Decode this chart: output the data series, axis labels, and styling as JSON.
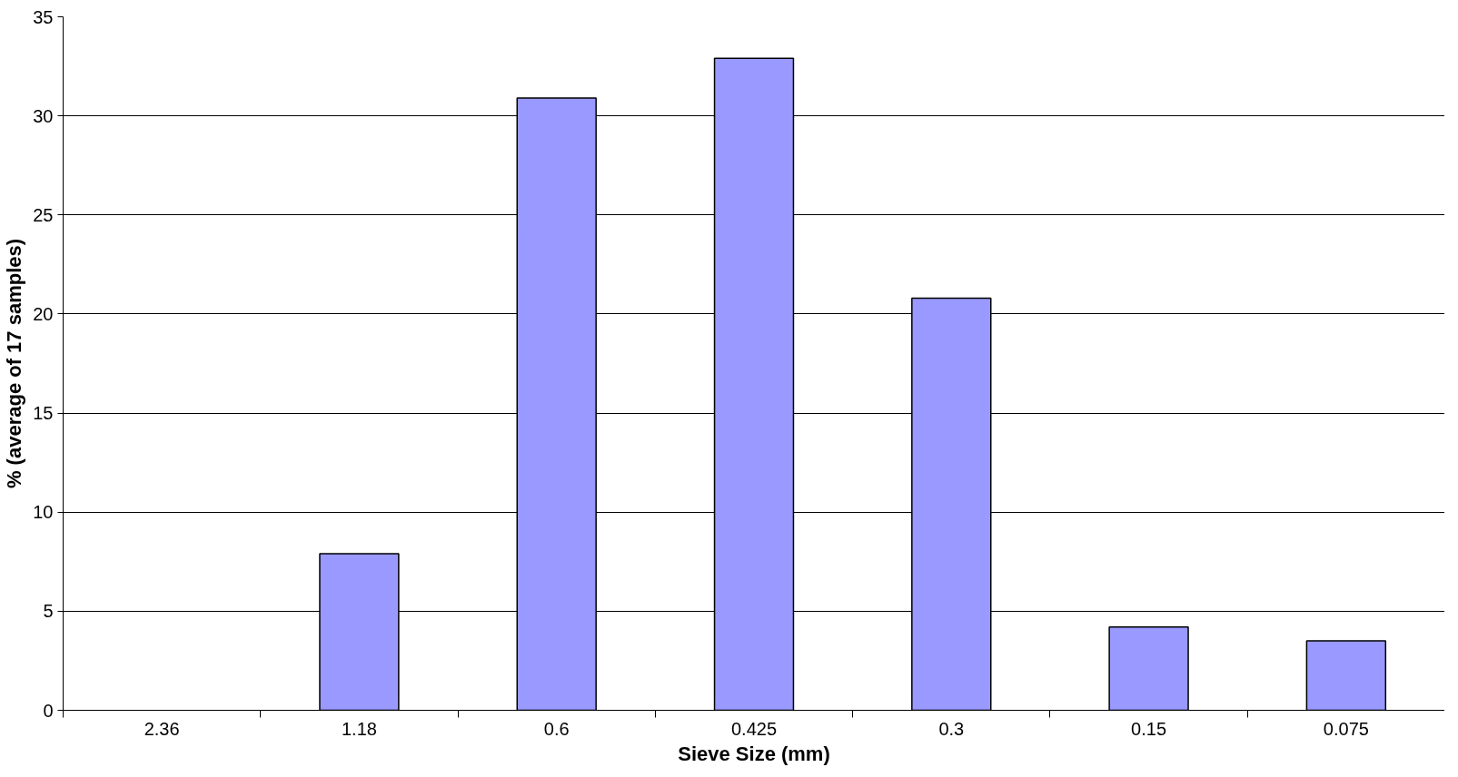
{
  "chart_data": {
    "type": "bar",
    "xlabel": "Sieve Size (mm)",
    "ylabel": "% (average of 17 samples)",
    "categories": [
      "2.36",
      "1.18",
      "0.6",
      "0.425",
      "0.3",
      "0.15",
      "0.075"
    ],
    "values": [
      null,
      7.9,
      30.9,
      32.9,
      20.8,
      4.2,
      3.5
    ],
    "color": "#9999ff",
    "ylim": [
      0,
      35
    ],
    "yticks": [
      0,
      5,
      10,
      15,
      20,
      25,
      30,
      35
    ],
    "grid": "y"
  }
}
